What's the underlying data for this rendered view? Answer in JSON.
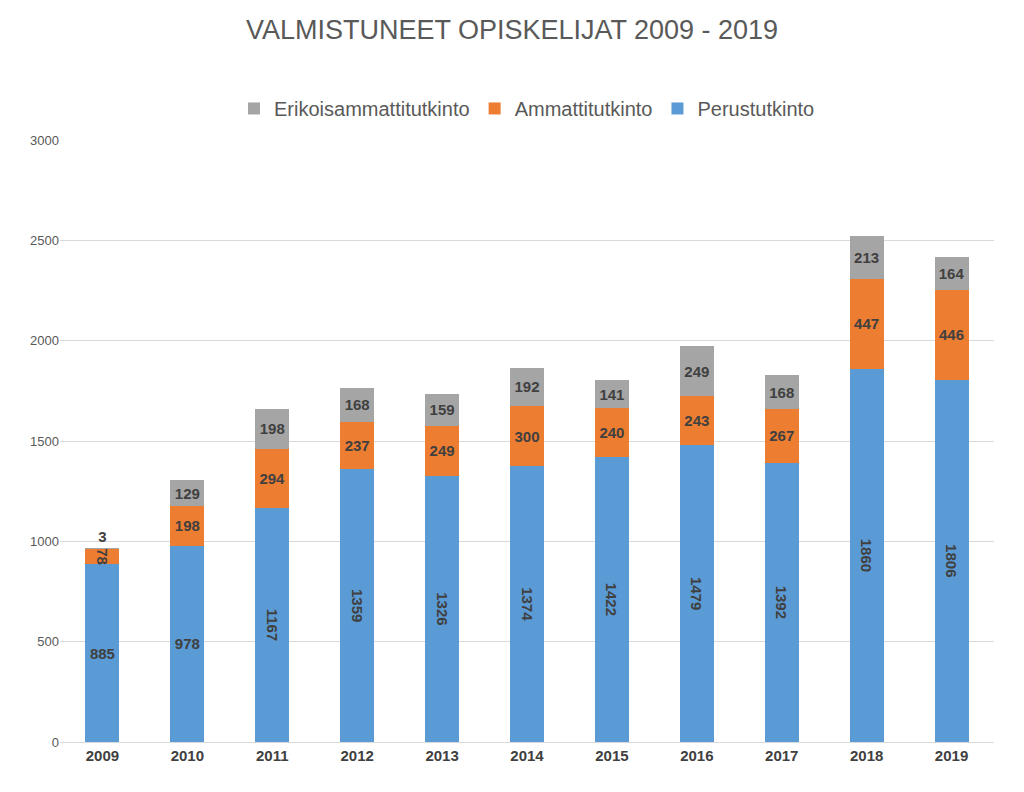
{
  "chart_data": {
    "type": "bar",
    "title": "VALMISTUNEET OPISKELIJAT 2009 - 2019",
    "categories": [
      "2009",
      "2010",
      "2011",
      "2012",
      "2013",
      "2014",
      "2015",
      "2016",
      "2017",
      "2018",
      "2019"
    ],
    "series": [
      {
        "name": "Perustutkinto",
        "color": "#5b9bd5",
        "values": [
          885,
          978,
          1167,
          1359,
          1326,
          1374,
          1422,
          1479,
          1392,
          1860,
          1806
        ]
      },
      {
        "name": "Ammattitutkinto",
        "color": "#ed7d31",
        "values": [
          78,
          198,
          294,
          237,
          249,
          300,
          240,
          243,
          267,
          447,
          446
        ]
      },
      {
        "name": "Erikoisammattitutkinto",
        "color": "#a5a5a5",
        "values": [
          3,
          129,
          198,
          168,
          159,
          192,
          141,
          249,
          168,
          213,
          164
        ]
      }
    ],
    "ylim": [
      0,
      3000
    ],
    "yticks": [
      0,
      500,
      1000,
      1500,
      2000,
      2500,
      3000
    ],
    "grid": true,
    "stacked": true,
    "data_labels": true,
    "legend": "top"
  }
}
